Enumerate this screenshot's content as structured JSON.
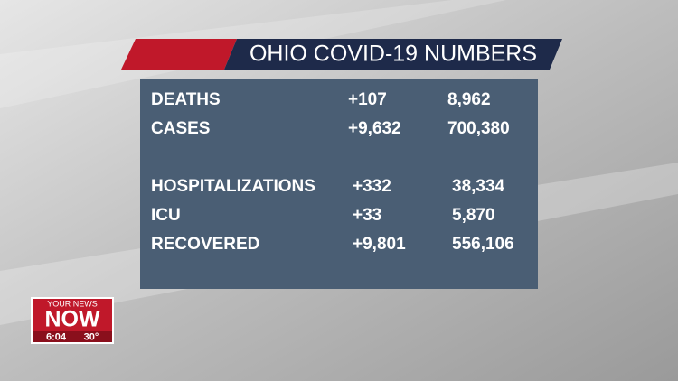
{
  "header": {
    "title": "OHIO COVID-19 NUMBERS"
  },
  "table": {
    "rows": [
      [
        "DEATHS",
        "+107",
        "8,962"
      ],
      [
        "CASES",
        "+9,632",
        "700,380"
      ],
      [
        "HOSPITALIZATIONS",
        "+332",
        "38,334"
      ],
      [
        "ICU",
        "+33",
        "5,870"
      ],
      [
        "RECOVERED",
        "+9,801",
        "556,106"
      ]
    ]
  },
  "logo": {
    "tagline": "YOUR NEWS",
    "name": "NOW",
    "time": "6:04",
    "temperature": "30°"
  }
}
